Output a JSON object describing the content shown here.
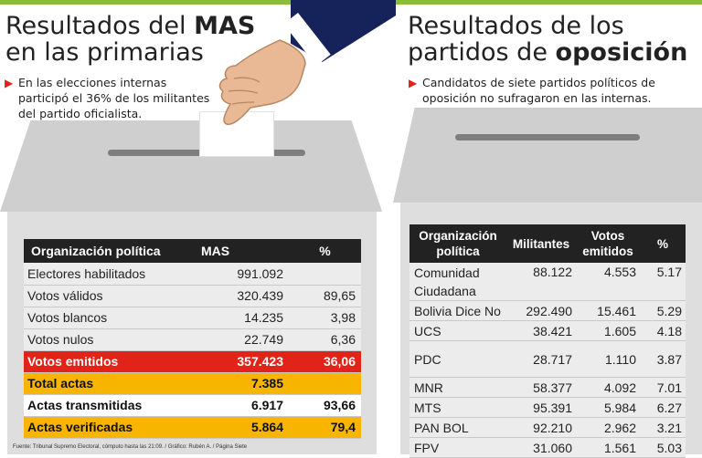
{
  "left": {
    "title_line1_prefix": "Resultados del ",
    "title_line1_bold": "MAS",
    "title_line2": "en las primarias",
    "bullet": "En las elecciones internas participó el 36% de los militantes del partido oficialista.",
    "table": {
      "headers": [
        "Organización política",
        "MAS",
        "%"
      ],
      "rows": [
        {
          "label": "Electores habilitados",
          "mas": "991.092",
          "pct": ""
        },
        {
          "label": "Votos válidos",
          "mas": "320.439",
          "pct": "89,65"
        },
        {
          "label": "Votos blancos",
          "mas": "14.235",
          "pct": "3,98"
        },
        {
          "label": "Votos nulos",
          "mas": "22.749",
          "pct": "6,36"
        },
        {
          "label": "Votos emitidos",
          "mas": "357.423",
          "pct": "36,06"
        },
        {
          "label": "Total actas",
          "mas": "7.385",
          "pct": ""
        },
        {
          "label": "Actas transmitidas",
          "mas": "6.917",
          "pct": "93,66"
        },
        {
          "label": "Actas verificadas",
          "mas": "5.864",
          "pct": "79,4"
        }
      ]
    },
    "source": "Fuente: Tribunal Supremo Electoral, cómputo hasta las 21:09. / Gráfico: Rubén A. / Página Siete"
  },
  "right": {
    "title_line1": "Resultados de los",
    "title_line2_prefix": "partidos de ",
    "title_line2_bold": "oposición",
    "bullet": "Candidatos de siete partidos políticos de oposición no sufragaron en las internas.",
    "table": {
      "headers": [
        "Organización política",
        "Militantes",
        "Votos emitidos",
        "%"
      ],
      "rows": [
        {
          "org": "Comunidad Ciudadana",
          "militantes": "88.122",
          "votos": "4.553",
          "pct": "5.17"
        },
        {
          "org": "Bolivia Dice No",
          "militantes": "292.490",
          "votos": "15.461",
          "pct": "5.29"
        },
        {
          "org": "UCS",
          "militantes": "38.421",
          "votos": "1.605",
          "pct": "4.18"
        },
        {
          "org": "PDC",
          "militantes": "28.717",
          "votos": "1.110",
          "pct": "3.87"
        },
        {
          "org": "MNR",
          "militantes": "58.377",
          "votos": "4.092",
          "pct": "7.01"
        },
        {
          "org": "MTS",
          "militantes": "95.391",
          "votos": "5.984",
          "pct": "6.27"
        },
        {
          "org": "PAN BOL",
          "militantes": "92.210",
          "votos": "2.962",
          "pct": "3.21"
        },
        {
          "org": "FPV",
          "militantes": "31.060",
          "votos": "1.561",
          "pct": "5.03"
        }
      ]
    }
  },
  "colors": {
    "accent_red": "#e2231a",
    "accent_yellow": "#f7b500",
    "header_dark": "#222222",
    "top_bar_green": "#8bbf3a",
    "sleeve_navy": "#16235a"
  }
}
